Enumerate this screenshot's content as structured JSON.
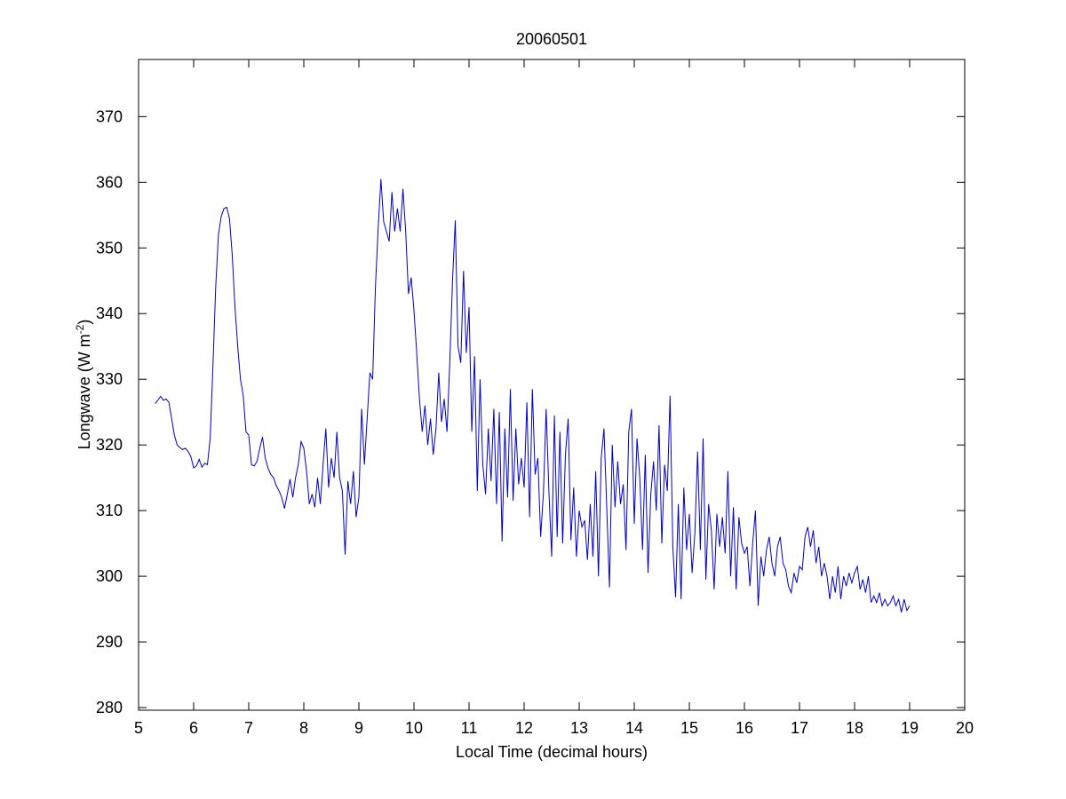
{
  "chart_data": {
    "type": "line",
    "title": "20060501",
    "xlabel": "Local Time (decimal hours)",
    "ylabel": {
      "text": "Longwave (W m",
      "sup": "-2",
      "close": ")"
    },
    "color": "#0000cc",
    "xlim": [
      5,
      20
    ],
    "xticks": [
      5,
      6,
      7,
      8,
      9,
      10,
      11,
      12,
      13,
      14,
      15,
      16,
      17,
      18,
      19,
      20
    ],
    "ylim": [
      279.6,
      378.7
    ],
    "yticks": [
      280,
      290,
      300,
      310,
      320,
      330,
      340,
      350,
      360,
      370
    ],
    "x": [
      5.3,
      5.35,
      5.4,
      5.45,
      5.5,
      5.55,
      5.6,
      5.65,
      5.7,
      5.75,
      5.8,
      5.85,
      5.9,
      5.95,
      6.0,
      6.05,
      6.1,
      6.15,
      6.2,
      6.25,
      6.3,
      6.35,
      6.4,
      6.45,
      6.5,
      6.55,
      6.6,
      6.65,
      6.7,
      6.75,
      6.8,
      6.85,
      6.9,
      6.95,
      7.0,
      7.05,
      7.1,
      7.15,
      7.2,
      7.25,
      7.3,
      7.35,
      7.4,
      7.45,
      7.5,
      7.55,
      7.6,
      7.65,
      7.7,
      7.75,
      7.8,
      7.85,
      7.9,
      7.95,
      8.0,
      8.05,
      8.1,
      8.15,
      8.2,
      8.25,
      8.3,
      8.35,
      8.4,
      8.45,
      8.5,
      8.55,
      8.6,
      8.65,
      8.7,
      8.75,
      8.8,
      8.85,
      8.9,
      8.95,
      9.0,
      9.05,
      9.1,
      9.15,
      9.2,
      9.25,
      9.3,
      9.35,
      9.4,
      9.45,
      9.5,
      9.55,
      9.6,
      9.65,
      9.7,
      9.75,
      9.8,
      9.85,
      9.9,
      9.95,
      10.0,
      10.05,
      10.1,
      10.15,
      10.2,
      10.25,
      10.3,
      10.35,
      10.4,
      10.45,
      10.5,
      10.55,
      10.6,
      10.65,
      10.7,
      10.75,
      10.8,
      10.85,
      10.9,
      10.95,
      11.0,
      11.05,
      11.1,
      11.15,
      11.2,
      11.25,
      11.3,
      11.35,
      11.4,
      11.45,
      11.5,
      11.55,
      11.6,
      11.65,
      11.7,
      11.75,
      11.8,
      11.85,
      11.9,
      11.95,
      12.0,
      12.05,
      12.1,
      12.15,
      12.2,
      12.25,
      12.3,
      12.35,
      12.4,
      12.45,
      12.5,
      12.55,
      12.6,
      12.65,
      12.7,
      12.75,
      12.8,
      12.85,
      12.9,
      12.95,
      13.0,
      13.05,
      13.1,
      13.15,
      13.2,
      13.25,
      13.3,
      13.35,
      13.4,
      13.45,
      13.5,
      13.55,
      13.6,
      13.65,
      13.7,
      13.75,
      13.8,
      13.85,
      13.9,
      13.95,
      14.0,
      14.05,
      14.1,
      14.15,
      14.2,
      14.25,
      14.3,
      14.35,
      14.4,
      14.45,
      14.5,
      14.55,
      14.6,
      14.65,
      14.7,
      14.75,
      14.8,
      14.85,
      14.9,
      14.95,
      15.0,
      15.05,
      15.1,
      15.15,
      15.2,
      15.25,
      15.3,
      15.35,
      15.4,
      15.45,
      15.5,
      15.55,
      15.6,
      15.65,
      15.7,
      15.75,
      15.8,
      15.85,
      15.9,
      15.95,
      16.0,
      16.05,
      16.1,
      16.15,
      16.2,
      16.25,
      16.3,
      16.35,
      16.4,
      16.45,
      16.5,
      16.55,
      16.6,
      16.65,
      16.7,
      16.75,
      16.8,
      16.85,
      16.9,
      16.95,
      17.0,
      17.05,
      17.1,
      17.15,
      17.2,
      17.25,
      17.3,
      17.35,
      17.4,
      17.45,
      17.5,
      17.55,
      17.6,
      17.65,
      17.7,
      17.75,
      17.8,
      17.85,
      17.9,
      17.95,
      18.0,
      18.05,
      18.1,
      18.15,
      18.2,
      18.25,
      18.3,
      18.35,
      18.4,
      18.45,
      18.5,
      18.55,
      18.6,
      18.65,
      18.7,
      18.75,
      18.8,
      18.85,
      18.9,
      18.95,
      19.0
    ],
    "values": [
      326.3,
      326.8,
      327.4,
      326.8,
      327.0,
      326.5,
      324.0,
      321.5,
      320.0,
      319.6,
      319.3,
      319.5,
      319.0,
      318.2,
      316.5,
      316.8,
      317.8,
      316.6,
      317.2,
      317.0,
      321.0,
      332.0,
      344.0,
      352.0,
      354.8,
      356.0,
      356.2,
      354.5,
      349.0,
      341.0,
      335.0,
      330.0,
      327.5,
      322.0,
      321.5,
      317.0,
      316.8,
      317.5,
      319.5,
      321.2,
      318.0,
      316.5,
      315.5,
      315.0,
      313.8,
      313.0,
      312.0,
      310.3,
      312.5,
      314.8,
      312.0,
      315.0,
      317.0,
      320.5,
      319.5,
      316.0,
      311.0,
      312.5,
      310.5,
      315.0,
      311.0,
      317.0,
      322.5,
      313.5,
      318.0,
      315.0,
      322.0,
      315.0,
      313.0,
      303.3,
      314.5,
      311.0,
      316.0,
      309.0,
      312.0,
      325.5,
      317.0,
      324.0,
      331.0,
      330.0,
      344.0,
      353.0,
      360.5,
      354.0,
      352.5,
      351.0,
      358.5,
      352.5,
      356.0,
      352.5,
      359.0,
      352.5,
      343.0,
      345.5,
      340.5,
      334.0,
      327.0,
      322.0,
      326.0,
      320.0,
      324.0,
      318.5,
      322.5,
      331.0,
      323.5,
      327.0,
      322.0,
      332.5,
      345.0,
      354.2,
      335.0,
      332.5,
      346.5,
      334.0,
      341.0,
      322.0,
      333.5,
      313.0,
      330.0,
      317.0,
      312.5,
      322.5,
      314.5,
      325.5,
      311.0,
      325.0,
      305.3,
      322.5,
      312.0,
      328.5,
      311.5,
      322.5,
      314.0,
      318.0,
      313.5,
      326.5,
      309.0,
      328.5,
      315.5,
      318.0,
      306.0,
      312.5,
      325.5,
      313.0,
      303.0,
      324.5,
      306.0,
      322.0,
      305.0,
      318.5,
      324.0,
      305.5,
      313.5,
      303.0,
      310.0,
      307.5,
      308.5,
      302.5,
      311.0,
      303.0,
      316.0,
      300.0,
      318.0,
      322.5,
      310.5,
      298.3,
      320.0,
      310.5,
      317.5,
      311.0,
      314.0,
      304.0,
      322.0,
      325.5,
      308.0,
      321.0,
      315.0,
      304.0,
      318.5,
      300.5,
      312.5,
      317.5,
      310.0,
      323.0,
      305.0,
      317.0,
      313.0,
      327.5,
      304.5,
      296.8,
      311.0,
      296.5,
      313.5,
      304.0,
      309.5,
      300.5,
      306.5,
      319.0,
      304.0,
      321.0,
      299.5,
      311.0,
      307.0,
      298.0,
      309.5,
      304.5,
      309.0,
      303.5,
      316.0,
      300.0,
      310.5,
      298.0,
      309.0,
      305.0,
      303.5,
      304.5,
      298.5,
      305.0,
      310.0,
      295.5,
      303.0,
      300.0,
      304.0,
      306.0,
      302.0,
      300.0,
      304.5,
      306.0,
      302.0,
      301.0,
      298.5,
      297.5,
      300.5,
      299.0,
      301.5,
      301.0,
      306.0,
      307.5,
      304.5,
      307.0,
      302.0,
      304.5,
      300.0,
      302.0,
      300.0,
      296.5,
      300.0,
      297.5,
      301.5,
      296.5,
      300.0,
      298.5,
      300.5,
      299.0,
      300.5,
      301.5,
      298.0,
      299.5,
      297.5,
      300.0,
      296.0,
      297.0,
      296.0,
      297.5,
      295.5,
      296.5,
      295.5,
      296.0,
      297.0,
      295.5,
      296.5,
      294.5,
      296.5,
      294.8,
      295.5
    ]
  }
}
